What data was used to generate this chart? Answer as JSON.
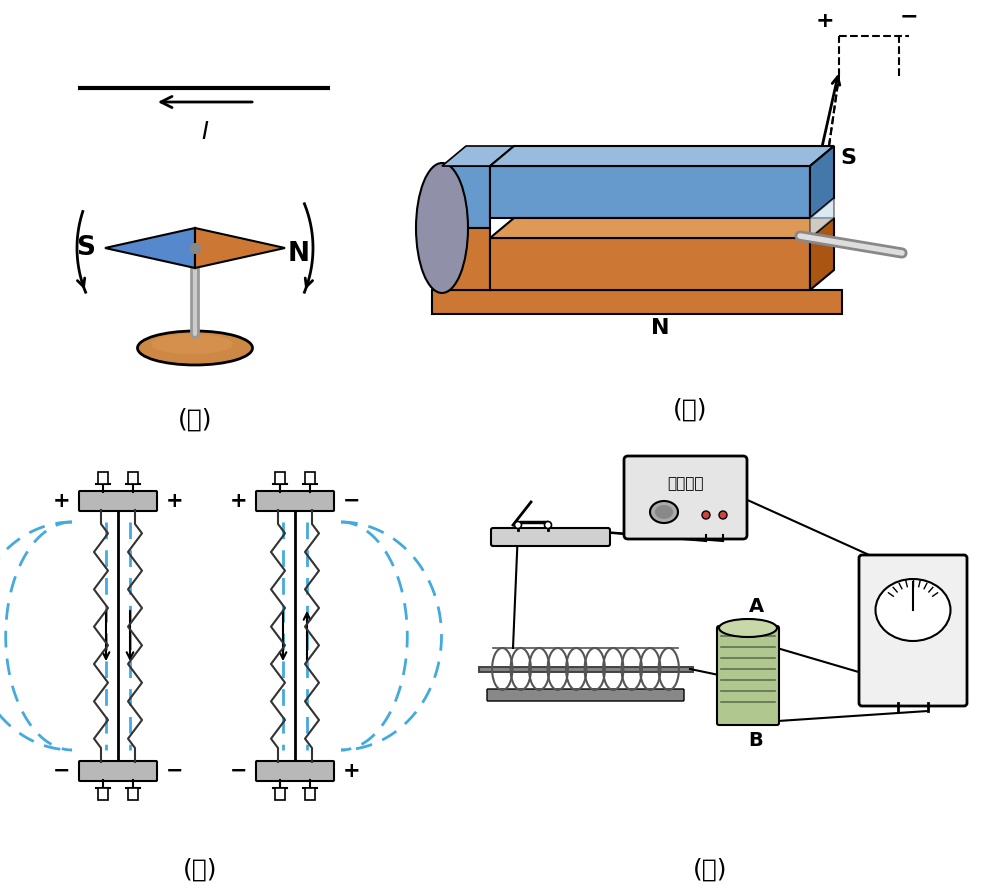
{
  "bg_color": "#ffffff",
  "panel_labels": [
    "(甲)",
    "(乙)",
    "(丙)",
    "(丁)"
  ],
  "label_fontsize": 18,
  "magnet_blue": "#6699cc",
  "magnet_blue_light": "#99bbdd",
  "magnet_blue_dark": "#4477aa",
  "magnet_orange": "#cc7733",
  "magnet_orange_light": "#dd9955",
  "magnet_orange_dark": "#aa5511",
  "compass_blue": "#5588cc",
  "compass_orange": "#cc7733",
  "base_color": "#cc8844",
  "base_inner": "#dd9955",
  "spring_color": "#333333",
  "plate_color": "#b8b8b8",
  "dashed_color": "#44aadd",
  "galv_face": "#f5f5f5",
  "box_fill": "#e5e5e5"
}
